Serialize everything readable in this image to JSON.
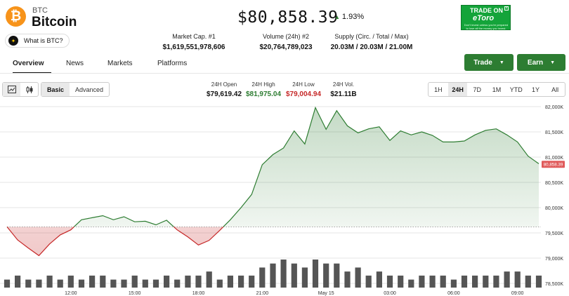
{
  "coin": {
    "logo_glyph": "₿",
    "ticker": "BTC",
    "name": "Bitcoin",
    "what_is": "What is BTC?",
    "price": "$80,858.39",
    "change": "1.93%"
  },
  "stats": [
    {
      "label": "Market Cap. #1",
      "value": "$1,619,551,978,606"
    },
    {
      "label": "Volume (24h) #2",
      "value": "$20,764,789,023"
    },
    {
      "label": "Supply (Circ. / Total / Max)",
      "value": "20.03M / 20.03M / 21.00M"
    }
  ],
  "ad": {
    "line1": "TRADE ON",
    "line2": "eToro",
    "disclaimer": "Don't invest unless you're prepared to lose all the money you invest."
  },
  "tabs": [
    "Overview",
    "News",
    "Markets",
    "Platforms"
  ],
  "buttons": {
    "trade": "Trade",
    "earn": "Earn"
  },
  "modes": [
    "Basic",
    "Advanced"
  ],
  "ohlc": [
    {
      "label": "24H Open",
      "value": "$79,619.42"
    },
    {
      "label": "24H High",
      "value": "$81,975.04"
    },
    {
      "label": "24H Low",
      "value": "$79,004.94"
    },
    {
      "label": "24H Vol.",
      "value": "$21.11B"
    }
  ],
  "ranges": [
    "1H",
    "24H",
    "7D",
    "1M",
    "YTD",
    "1Y",
    "All"
  ],
  "colors": {
    "up": "#2e7d32",
    "down": "#c62828",
    "accent_button": "#2d7d32",
    "price_tag": "#e05a5a",
    "volume": "#555555"
  },
  "chart_data": {
    "type": "area",
    "open_reference": 79619.42,
    "current_price": 80858.39,
    "current_price_label": "80,858.39",
    "ylim": [
      78500,
      82000
    ],
    "y_ticks": [
      "82,000K",
      "81,500K",
      "81,000K",
      "80,500K",
      "80,000K",
      "79,500K",
      "79,000K",
      "78,500K"
    ],
    "y_tick_values": [
      82000,
      81500,
      81000,
      80500,
      80000,
      79500,
      79000,
      78500
    ],
    "x_ticks": [
      "12:00",
      "15:00",
      "18:00",
      "21:00",
      "May 15",
      "03:00",
      "06:00",
      "09:00"
    ],
    "x_tick_hours": [
      3,
      6,
      9,
      12,
      15,
      18,
      21,
      24
    ],
    "x_range_hours": [
      0,
      25.1
    ],
    "price_series_hours": [
      0,
      0.5,
      1,
      1.5,
      2,
      2.5,
      3,
      3.5,
      4,
      4.5,
      5,
      5.5,
      6,
      6.5,
      7,
      7.5,
      8,
      8.5,
      9,
      9.5,
      10,
      10.5,
      11,
      11.5,
      12,
      12.5,
      13,
      13.5,
      14,
      14.5,
      15,
      15.5,
      16,
      16.5,
      17,
      17.5,
      18,
      18.5,
      19,
      19.5,
      20,
      20.5,
      21,
      21.5,
      22,
      22.5,
      23,
      23.5,
      24,
      24.5,
      25
    ],
    "price_series": [
      79620,
      79360,
      79200,
      79050,
      79280,
      79460,
      79560,
      79760,
      79800,
      79840,
      79760,
      79820,
      79720,
      79730,
      79660,
      79750,
      79560,
      79420,
      79260,
      79350,
      79550,
      79760,
      80000,
      80260,
      80850,
      81050,
      81180,
      81520,
      81260,
      81980,
      81550,
      81920,
      81620,
      81480,
      81560,
      81600,
      81330,
      81520,
      81440,
      81500,
      81430,
      81300,
      81300,
      81320,
      81440,
      81530,
      81560,
      81440,
      81300,
      81020,
      80870
    ],
    "volume_series": [
      2,
      3,
      2,
      2,
      3,
      2,
      3,
      2,
      3,
      3,
      2,
      2,
      3,
      2,
      2,
      3,
      2,
      3,
      3,
      4,
      2,
      3,
      3,
      3,
      5,
      6,
      7,
      6,
      5,
      7,
      6,
      6,
      4,
      5,
      3,
      4,
      3,
      3,
      2,
      3,
      3,
      3,
      2,
      3,
      3,
      3,
      3,
      4,
      4,
      3,
      3
    ]
  }
}
